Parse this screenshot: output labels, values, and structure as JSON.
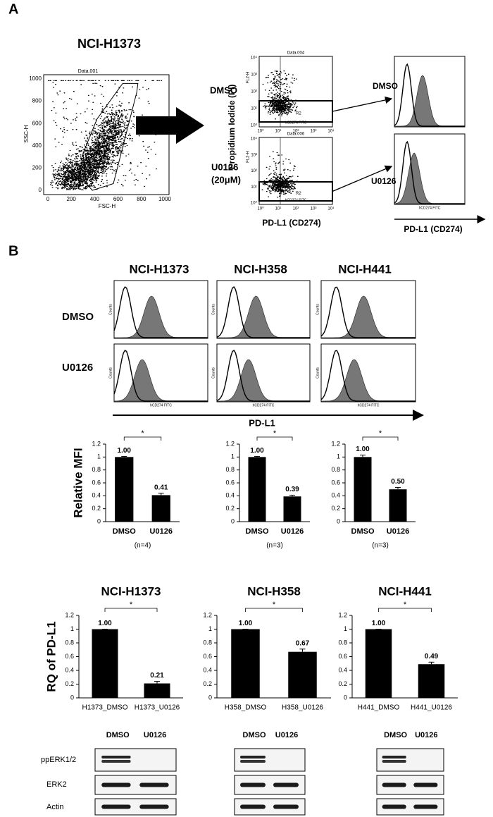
{
  "panel_a": {
    "label": "A",
    "title": "NCI-H1373",
    "scatter": {
      "header": "Data.001",
      "xlabel": "FSC-H",
      "ylabel": "SSC-H",
      "gate": "R1",
      "xticks": [
        0,
        200,
        400,
        600,
        800,
        1000
      ],
      "yticks": [
        0,
        200,
        400,
        600,
        800,
        1000
      ]
    },
    "conditions": [
      "DMSO",
      "U0126",
      "(20μM)"
    ],
    "dotplots": {
      "headers": [
        "Data.004",
        "Data.006"
      ],
      "gate": "R2",
      "xlabel": "hCD274 FITC",
      "ylabel": "FL2-H",
      "ticks": [
        "10⁰",
        "10¹",
        "10²",
        "10³",
        "10⁴"
      ]
    },
    "pi_label": "Propidium Iodide (PI)",
    "pd_l1_label": "PD-L1 (CD274)",
    "hist_xlabel": "hCD274 FITC"
  },
  "panel_b": {
    "label": "B",
    "cell_lines": [
      "NCI-H1373",
      "NCI-H358",
      "NCI-H441"
    ],
    "conditions": [
      "DMSO",
      "U0126"
    ],
    "hist_ylabel": "Counts",
    "hist_xlabel": "hCD274 FITC",
    "axis_label": "PD-L1"
  },
  "chart_data": [
    {
      "type": "bar",
      "ylabel": "Relative MFI",
      "categories": [
        "DMSO",
        "U0126"
      ],
      "values": [
        1,
        0.41
      ],
      "errors": [
        0.01,
        0.03
      ],
      "value_labels": [
        "1.00",
        "0.41"
      ],
      "note": "(n=4)",
      "significance": "*",
      "color": "#000000",
      "ylim": [
        0,
        1.2
      ],
      "yticks": [
        0,
        0.2,
        0.4,
        0.6,
        0.8,
        1,
        1.2
      ]
    },
    {
      "type": "bar",
      "categories": [
        "DMSO",
        "U0126"
      ],
      "values": [
        1,
        0.39
      ],
      "errors": [
        0.01,
        0.02
      ],
      "value_labels": [
        "1.00",
        "0.39"
      ],
      "note": "(n=3)",
      "significance": "*",
      "color": "#000000",
      "ylim": [
        0,
        1.2
      ],
      "yticks": [
        0,
        0.2,
        0.4,
        0.6,
        0.8,
        1,
        1.2
      ]
    },
    {
      "type": "bar",
      "categories": [
        "DMSO",
        "U0126"
      ],
      "values": [
        1,
        0.5
      ],
      "errors": [
        0.03,
        0.03
      ],
      "value_labels": [
        "1.00",
        "0.50"
      ],
      "note": "(n=3)",
      "significance": "*",
      "color": "#000000",
      "ylim": [
        0,
        1.2
      ],
      "yticks": [
        0,
        0.2,
        0.4,
        0.6,
        0.8,
        1,
        1.2
      ]
    },
    {
      "type": "bar",
      "title": "NCI-H1373",
      "ylabel": "RQ of PD-L1",
      "categories": [
        "H1373_DMSO",
        "H1373_U0126"
      ],
      "values": [
        1,
        0.21
      ],
      "errors": [
        0,
        0.03
      ],
      "value_labels": [
        "1.00",
        "0.21"
      ],
      "significance": "*",
      "color": "#000000",
      "ylim": [
        0,
        1.2
      ],
      "yticks": [
        0,
        0.2,
        0.4,
        0.6,
        0.8,
        1,
        1.2
      ]
    },
    {
      "type": "bar",
      "title": "NCI-H358",
      "categories": [
        "H358_DMSO",
        "H358_U0126"
      ],
      "values": [
        1,
        0.67
      ],
      "errors": [
        0,
        0.04
      ],
      "value_labels": [
        "1.00",
        "0.67"
      ],
      "significance": "*",
      "color": "#000000",
      "ylim": [
        0,
        1.2
      ],
      "yticks": [
        0,
        0.2,
        0.4,
        0.6,
        0.8,
        1,
        1.2
      ]
    },
    {
      "type": "bar",
      "title": "NCI-H441",
      "categories": [
        "H441_DMSO",
        "H441_U0126"
      ],
      "values": [
        1,
        0.49
      ],
      "errors": [
        0,
        0.03
      ],
      "value_labels": [
        "1.00",
        "0.49"
      ],
      "significance": "*",
      "color": "#000000",
      "ylim": [
        0,
        1.2
      ],
      "yticks": [
        0,
        0.2,
        0.4,
        0.6,
        0.8,
        1,
        1.2
      ]
    }
  ],
  "blots": {
    "lanes": [
      "DMSO",
      "U0126"
    ],
    "rows": [
      "ppERK1/2",
      "ERK2",
      "Actin"
    ]
  }
}
